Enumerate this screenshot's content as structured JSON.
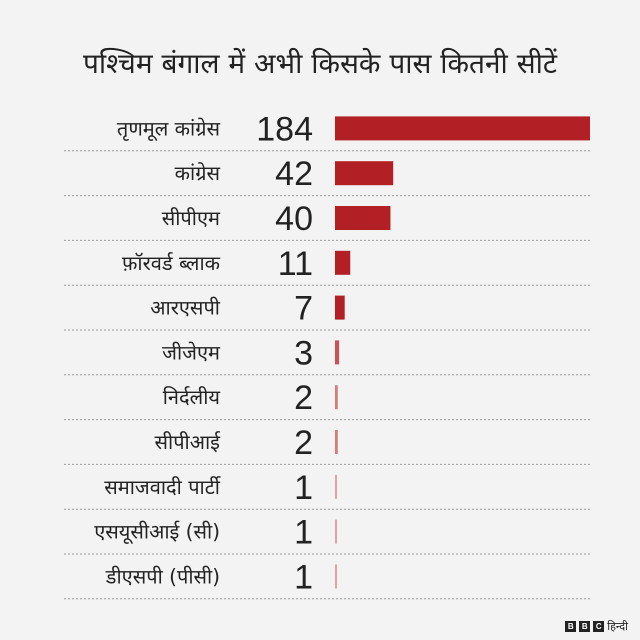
{
  "chart_data": {
    "type": "bar",
    "title": "पश्चिम बंगाल में अभी किसके पास कितनी सीटें",
    "categories": [
      "तृणमूल कांग्रेस",
      "कांग्रेस",
      "सीपीएम",
      "फ़ॉरवर्ड ब्लाक",
      "आरएसपी",
      "जीजेएम",
      "निर्दलीय",
      "सीपीआई",
      "समाजवादी पार्टी",
      "एसयूसीआई (सी)",
      "डीएसपी (पीसी)"
    ],
    "values": [
      184,
      42,
      40,
      11,
      7,
      3,
      2,
      2,
      1,
      1,
      1
    ],
    "value_labels": [
      "184",
      "42",
      "40",
      "11",
      "7",
      "3",
      "2",
      "2",
      "1",
      "1",
      "1"
    ],
    "xlim": [
      0,
      184
    ],
    "bar_colors": [
      "#b21f24",
      "#b21f24",
      "#b21f24",
      "#b21f24",
      "#b21f24",
      "#c95257",
      "#d77a7e",
      "#d77a7e",
      "#e3a2a5",
      "#e3a2a5",
      "#e3a2a5"
    ]
  },
  "footer": {
    "brand_letters": [
      "B",
      "B",
      "C"
    ],
    "brand_text": "हिन्दी"
  }
}
